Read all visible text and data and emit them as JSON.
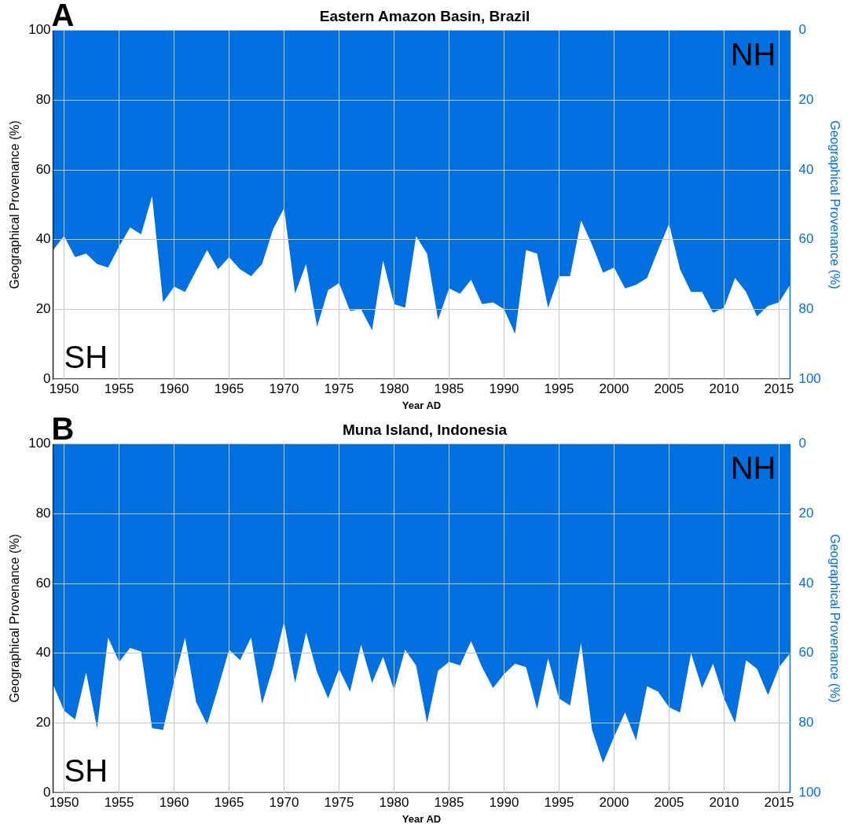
{
  "chart_data": [
    {
      "type": "area",
      "title": "Eastern Amazon Basin, Brazil",
      "xlabel": "Year AD",
      "ylabel": "Geographical Provenance (%)",
      "y2label": "Geographical Provenance (%)",
      "annotations": [
        "A",
        "SH"
      ],
      "x": [
        1949,
        1950,
        1951,
        1952,
        1953,
        1954,
        1955,
        1956,
        1957,
        1958,
        1959,
        1960,
        1961,
        1962,
        1963,
        1964,
        1965,
        1966,
        1967,
        1968,
        1969,
        1970,
        1971,
        1972,
        1973,
        1974,
        1975,
        1976,
        1977,
        1978,
        1979,
        1980,
        1981,
        1982,
        1983,
        1984,
        1985,
        1986,
        1987,
        1988,
        1989,
        1990,
        1991,
        1992,
        1993,
        1994,
        1995,
        1996,
        1997,
        1998,
        1999,
        2000,
        2001,
        2002,
        2003,
        2004,
        2005,
        2006,
        2007,
        2008,
        2009,
        2010,
        2011,
        2012,
        2013,
        2014,
        2015,
        2016
      ],
      "series": [
        {
          "name": "NH",
          "color": "#0070e0",
          "axis": "y2",
          "values": [
            63,
            59,
            65,
            64,
            67,
            68,
            62,
            56.5,
            58.5,
            47.5,
            78,
            73.5,
            75,
            69,
            63,
            68.5,
            65,
            68.5,
            70.5,
            67,
            57,
            51,
            75.5,
            67,
            85,
            74.5,
            72.5,
            80.5,
            80,
            86,
            66,
            78.5,
            79.5,
            59,
            64,
            83,
            74,
            75.5,
            71.5,
            78.5,
            78,
            80,
            87,
            63,
            64,
            79.5,
            70.5,
            70.5,
            54.5,
            61.5,
            69.5,
            68,
            74,
            73,
            71,
            63,
            55.5,
            68.5,
            75,
            75,
            81,
            79.5,
            71,
            75,
            82,
            79,
            78,
            73
          ]
        }
      ],
      "xlim": [
        1949,
        2016
      ],
      "xticks": [
        1950,
        1955,
        1960,
        1965,
        1970,
        1975,
        1980,
        1985,
        1990,
        1995,
        2000,
        2005,
        2010,
        2015
      ],
      "ylim": [
        0,
        100
      ],
      "yticks": [
        0,
        20,
        40,
        60,
        80,
        100
      ],
      "y2lim": [
        100,
        0
      ],
      "y2ticks": [
        0,
        20,
        40,
        60,
        80,
        100
      ],
      "grid": true
    },
    {
      "type": "area",
      "title": "Muna Island, Indonesia",
      "xlabel": "Year AD",
      "ylabel": "Geographical Provenance (%)",
      "y2label": "Geographical Provenance (%)",
      "annotations": [
        "B",
        "SH"
      ],
      "x": [
        1949,
        1950,
        1951,
        1952,
        1953,
        1954,
        1955,
        1956,
        1957,
        1958,
        1959,
        1960,
        1961,
        1962,
        1963,
        1964,
        1965,
        1966,
        1967,
        1968,
        1969,
        1970,
        1971,
        1972,
        1973,
        1974,
        1975,
        1976,
        1977,
        1978,
        1979,
        1980,
        1981,
        1982,
        1983,
        1984,
        1985,
        1986,
        1987,
        1988,
        1989,
        1990,
        1991,
        1992,
        1993,
        1994,
        1995,
        1996,
        1997,
        1998,
        1999,
        2000,
        2001,
        2002,
        2003,
        2004,
        2005,
        2006,
        2007,
        2008,
        2009,
        2010,
        2011,
        2012,
        2013,
        2014,
        2015,
        2016
      ],
      "series": [
        {
          "name": "NH",
          "color": "#0070e0",
          "axis": "y2",
          "values": [
            69,
            76.5,
            79,
            65.5,
            81.5,
            55.5,
            62.5,
            58.5,
            59.5,
            81.5,
            82,
            68,
            55.5,
            74,
            80.5,
            70,
            59,
            62,
            55.5,
            74.5,
            64,
            51,
            68.5,
            54,
            65.5,
            73,
            64.5,
            71,
            57.5,
            68.5,
            61,
            70.5,
            59,
            63.5,
            80,
            65,
            62.5,
            63.5,
            56.5,
            64,
            70,
            66,
            63,
            64,
            76,
            61.5,
            73,
            75,
            57,
            82,
            91.5,
            84,
            77,
            85,
            69.5,
            71,
            75.5,
            77,
            60,
            70,
            63,
            73,
            80,
            62,
            64.5,
            72,
            64,
            60
          ]
        }
      ],
      "xlim": [
        1949,
        2016
      ],
      "xticks": [
        1950,
        1955,
        1960,
        1965,
        1970,
        1975,
        1980,
        1985,
        1990,
        1995,
        2000,
        2005,
        2010,
        2015
      ],
      "ylim": [
        0,
        100
      ],
      "yticks": [
        0,
        20,
        40,
        60,
        80,
        100
      ],
      "y2lim": [
        100,
        0
      ],
      "y2ticks": [
        0,
        20,
        40,
        60,
        80,
        100
      ],
      "grid": true
    }
  ]
}
